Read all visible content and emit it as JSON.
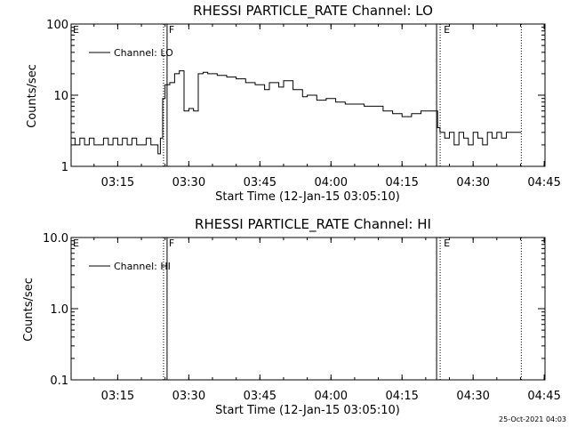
{
  "footer": "25-Oct-2021 04:03",
  "chart_data": [
    {
      "type": "line",
      "title": "RHESSI PARTICLE_RATE Channel: LO",
      "xlabel": "Start Time (12-Jan-15 03:05:10)",
      "ylabel": "Counts/sec",
      "yscale": "log",
      "ylim": [
        1,
        100
      ],
      "xlim": [
        "03:05:10",
        "04:45:10"
      ],
      "x_ticks": [
        "03:15",
        "03:30",
        "03:45",
        "04:00",
        "04:15",
        "04:30",
        "04:45"
      ],
      "y_ticks": [
        "1",
        "10",
        "100"
      ],
      "legend": {
        "entries": [
          "Channel: LO"
        ],
        "position": "top-left"
      },
      "flags": [
        {
          "label": "E",
          "time": "03:05:10",
          "style": "none"
        },
        {
          "label": "F",
          "time": "03:24:40",
          "style": "dotted+solid"
        },
        {
          "label": "E",
          "time": "04:22:40",
          "style": "solid+dotted"
        },
        {
          "label": "",
          "time": "04:40:10",
          "style": "dotted"
        }
      ],
      "series": [
        {
          "name": "Channel: LO",
          "x": [
            "03:05:10",
            "03:06:00",
            "03:07:00",
            "03:08:00",
            "03:09:00",
            "03:10:00",
            "03:11:00",
            "03:12:00",
            "03:13:00",
            "03:14:00",
            "03:15:00",
            "03:16:00",
            "03:17:00",
            "03:18:00",
            "03:19:00",
            "03:20:00",
            "03:21:00",
            "03:22:00",
            "03:23:00",
            "03:23:30",
            "03:24:00",
            "03:24:30",
            "03:25:00",
            "03:26:00",
            "03:27:00",
            "03:28:00",
            "03:29:00",
            "03:30:00",
            "03:31:00",
            "03:32:00",
            "03:33:00",
            "03:34:00",
            "03:36:00",
            "03:38:00",
            "03:40:00",
            "03:42:00",
            "03:44:00",
            "03:46:00",
            "03:47:00",
            "03:49:00",
            "03:50:00",
            "03:52:00",
            "03:54:00",
            "03:55:00",
            "03:57:00",
            "03:59:00",
            "04:01:00",
            "04:03:00",
            "04:05:00",
            "04:07:00",
            "04:09:00",
            "04:11:00",
            "04:13:00",
            "04:15:00",
            "04:17:00",
            "04:19:00",
            "04:21:00",
            "04:22:30",
            "04:23:00",
            "04:24:00",
            "04:25:00",
            "04:26:00",
            "04:27:00",
            "04:28:00",
            "04:29:00",
            "04:30:00",
            "04:31:00",
            "04:32:00",
            "04:33:00",
            "04:34:00",
            "04:35:00",
            "04:36:00",
            "04:37:00",
            "04:38:00",
            "04:39:00",
            "04:40:10"
          ],
          "values": [
            2.5,
            2.0,
            2.5,
            2.0,
            2.5,
            2.0,
            2.0,
            2.5,
            2.0,
            2.5,
            2.0,
            2.5,
            2.0,
            2.5,
            2.0,
            2.0,
            2.5,
            2.0,
            2.0,
            1.5,
            2.5,
            9.0,
            14.0,
            15.0,
            20.0,
            22.0,
            6.0,
            6.5,
            6.0,
            20.0,
            21.0,
            20.0,
            19.0,
            18.0,
            17.0,
            15.0,
            14.0,
            12.0,
            15.0,
            13.0,
            16.0,
            12.0,
            9.5,
            10.0,
            8.5,
            9.0,
            8.0,
            7.5,
            7.5,
            7.0,
            7.0,
            6.0,
            5.5,
            5.0,
            5.5,
            6.0,
            6.0,
            3.5,
            3.0,
            2.5,
            3.0,
            2.0,
            3.0,
            2.5,
            2.0,
            3.0,
            2.5,
            2.0,
            3.0,
            2.5,
            3.0,
            2.5,
            3.0,
            3.0,
            3.0,
            3.0
          ]
        }
      ]
    },
    {
      "type": "line",
      "title": "RHESSI PARTICLE_RATE Channel: HI",
      "xlabel": "Start Time (12-Jan-15 03:05:10)",
      "ylabel": "Counts/sec",
      "yscale": "log",
      "ylim": [
        0.1,
        10
      ],
      "xlim": [
        "03:05:10",
        "04:45:10"
      ],
      "x_ticks": [
        "03:15",
        "03:30",
        "03:45",
        "04:00",
        "04:15",
        "04:30",
        "04:45"
      ],
      "y_ticks": [
        "0.1",
        "1.0",
        "10.0"
      ],
      "legend": {
        "entries": [
          "Channel: HI"
        ],
        "position": "top-left"
      },
      "flags": [
        {
          "label": "E",
          "time": "03:05:10",
          "style": "none"
        },
        {
          "label": "F",
          "time": "03:24:40",
          "style": "dotted+solid"
        },
        {
          "label": "E",
          "time": "04:22:40",
          "style": "solid+dotted"
        },
        {
          "label": "",
          "time": "04:40:10",
          "style": "dotted"
        }
      ],
      "series": [
        {
          "name": "Channel: HI",
          "x": [],
          "values": []
        }
      ]
    }
  ]
}
